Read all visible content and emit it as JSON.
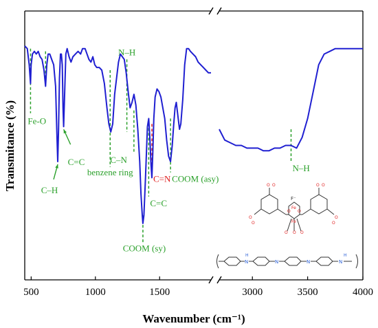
{
  "chart_data": {
    "type": "line",
    "title": "",
    "xlabel": "Wavenumber (cm⁻¹)",
    "ylabel": "Transmitance (%)",
    "x_axis": {
      "segments": [
        {
          "range": [
            450,
            1900
          ],
          "ticks": [
            500,
            1000,
            1500
          ],
          "tick_labels": [
            "500",
            "1000",
            "1500"
          ]
        },
        {
          "range": [
            2700,
            4000
          ],
          "ticks": [
            3000,
            3500,
            4000
          ],
          "tick_labels": [
            "3000",
            "3500",
            "4000"
          ]
        }
      ],
      "break_between": [
        1900,
        2700
      ]
    },
    "y_axis": {
      "ticks_shown": false,
      "ylim": [
        0,
        100
      ]
    },
    "series": [
      {
        "color": "#1f1fd1",
        "segments": [
          [
            [
              450,
              87
            ],
            [
              470,
              86
            ],
            [
              485,
              80
            ],
            [
              495,
              73
            ],
            [
              500,
              80
            ],
            [
              510,
              84
            ],
            [
              525,
              85
            ],
            [
              540,
              84
            ],
            [
              555,
              85
            ],
            [
              570,
              83
            ],
            [
              585,
              82
            ],
            [
              600,
              78
            ],
            [
              612,
              72
            ],
            [
              622,
              80
            ],
            [
              632,
              84
            ],
            [
              645,
              84
            ],
            [
              660,
              82
            ],
            [
              675,
              80
            ],
            [
              690,
              72
            ],
            [
              700,
              55
            ],
            [
              707,
              44
            ],
            [
              713,
              56
            ],
            [
              720,
              75
            ],
            [
              728,
              84
            ],
            [
              735,
              84
            ],
            [
              742,
              80
            ],
            [
              748,
              64
            ],
            [
              753,
              57
            ],
            [
              760,
              68
            ],
            [
              770,
              84
            ],
            [
              780,
              86
            ],
            [
              795,
              83
            ],
            [
              810,
              81
            ],
            [
              825,
              83
            ],
            [
              845,
              84
            ],
            [
              865,
              85
            ],
            [
              885,
              84
            ],
            [
              900,
              86
            ],
            [
              920,
              86
            ],
            [
              935,
              84
            ],
            [
              950,
              82
            ],
            [
              965,
              81
            ],
            [
              980,
              83
            ],
            [
              995,
              80
            ],
            [
              1010,
              79
            ],
            [
              1030,
              79
            ],
            [
              1050,
              78
            ],
            [
              1070,
              73
            ],
            [
              1090,
              64
            ],
            [
              1105,
              58
            ],
            [
              1120,
              55
            ],
            [
              1135,
              58
            ],
            [
              1150,
              69
            ],
            [
              1165,
              75
            ],
            [
              1180,
              81
            ],
            [
              1195,
              84
            ],
            [
              1210,
              83
            ],
            [
              1225,
              82
            ],
            [
              1240,
              77
            ],
            [
              1255,
              70
            ],
            [
              1270,
              64
            ],
            [
              1285,
              66
            ],
            [
              1300,
              69
            ],
            [
              1315,
              65
            ],
            [
              1330,
              56
            ],
            [
              1345,
              44
            ],
            [
              1355,
              32
            ],
            [
              1365,
              24
            ],
            [
              1370,
              21
            ],
            [
              1378,
              24
            ],
            [
              1390,
              38
            ],
            [
              1405,
              57
            ],
            [
              1415,
              60
            ],
            [
              1425,
              52
            ],
            [
              1433,
              43
            ],
            [
              1440,
              38
            ],
            [
              1447,
              47
            ],
            [
              1455,
              60
            ],
            [
              1465,
              68
            ],
            [
              1480,
              71
            ],
            [
              1495,
              70
            ],
            [
              1510,
              68
            ],
            [
              1525,
              64
            ],
            [
              1540,
              60
            ],
            [
              1555,
              52
            ],
            [
              1570,
              46
            ],
            [
              1585,
              44
            ],
            [
              1598,
              50
            ],
            [
              1610,
              58
            ],
            [
              1620,
              64
            ],
            [
              1630,
              66
            ],
            [
              1645,
              60
            ],
            [
              1655,
              56
            ],
            [
              1665,
              58
            ],
            [
              1680,
              67
            ],
            [
              1695,
              80
            ],
            [
              1710,
              86
            ],
            [
              1725,
              86
            ],
            [
              1740,
              85
            ],
            [
              1760,
              84
            ],
            [
              1780,
              83
            ],
            [
              1800,
              81
            ],
            [
              1820,
              80
            ],
            [
              1840,
              79
            ],
            [
              1860,
              78
            ],
            [
              1880,
              77
            ],
            [
              1900,
              77
            ]
          ],
          [
            [
              2700,
              56
            ],
            [
              2750,
              52
            ],
            [
              2800,
              51
            ],
            [
              2850,
              50
            ],
            [
              2900,
              50
            ],
            [
              2950,
              49
            ],
            [
              3000,
              49
            ],
            [
              3050,
              49
            ],
            [
              3100,
              48
            ],
            [
              3150,
              48
            ],
            [
              3200,
              49
            ],
            [
              3250,
              49
            ],
            [
              3300,
              50
            ],
            [
              3350,
              50
            ],
            [
              3400,
              49
            ],
            [
              3450,
              53
            ],
            [
              3500,
              60
            ],
            [
              3550,
              70
            ],
            [
              3600,
              80
            ],
            [
              3650,
              84
            ],
            [
              3700,
              85
            ],
            [
              3750,
              86
            ],
            [
              3800,
              86
            ],
            [
              3850,
              86
            ],
            [
              3900,
              86
            ],
            [
              3950,
              86
            ],
            [
              4000,
              86
            ]
          ]
        ]
      }
    ],
    "annotations": [
      {
        "text": "Fe-O",
        "x": 495,
        "y_top": 86,
        "y_bottom": 62,
        "color": "#2aa02a",
        "line": "dashed",
        "label_pos": "below"
      },
      {
        "text": "",
        "x": 612,
        "y_top": 85,
        "y_bottom": 72,
        "color": "#2aa02a",
        "line": "dashed"
      },
      {
        "text": "C–H",
        "x": 707,
        "color": "#2aa02a",
        "arrow": true,
        "label_pos": "below"
      },
      {
        "text": "C=C",
        "x": 753,
        "color": "#2aa02a",
        "arrow": true,
        "label_pos": "below-right"
      },
      {
        "text": "benzene ring",
        "x": 1115,
        "y_top": 78,
        "y_bottom": 42,
        "color": "#2aa02a",
        "line": "dashed",
        "label_pos": "below"
      },
      {
        "text": "N–H",
        "x": 1245,
        "y_top": 82,
        "y_bottom": 55,
        "color": "#2aa02a",
        "line": "dashed",
        "label_pos": "above"
      },
      {
        "text": "C–N",
        "x": 1300,
        "y_top": 63,
        "y_bottom": 47,
        "color": "#2aa02a",
        "line": "dashed",
        "label_pos": "below-left"
      },
      {
        "text": "COOM (sy)",
        "x": 1370,
        "y_top": 24,
        "y_bottom": 14,
        "color": "#2aa02a",
        "line": "dashed",
        "label_pos": "below"
      },
      {
        "text": "C=C",
        "x": 1415,
        "y_top": 60,
        "y_bottom": 31,
        "color": "#2aa02a",
        "line": "dashed",
        "label_pos": "below-right"
      },
      {
        "text": "C=N",
        "x": 1440,
        "y_top": 58,
        "y_bottom": 40,
        "color": "#e02020",
        "line": "dashed",
        "label_pos": "below-right"
      },
      {
        "text": "COOM (asy)",
        "x": 1585,
        "y_top": 60,
        "y_bottom": 40,
        "color": "#2aa02a",
        "line": "dashed",
        "label_pos": "below-right"
      },
      {
        "text": "N–H",
        "x": 3350,
        "y_top": 56,
        "y_bottom": 44,
        "color": "#2aa02a",
        "line": "dashed",
        "label_pos": "below-right"
      }
    ],
    "inset_structures": {
      "mof_labels": [
        "F⁻",
        "Fe",
        "O"
      ],
      "polymer_labels": [
        "H",
        "N",
        "N",
        "N",
        "H",
        "N"
      ]
    },
    "grid": false,
    "legend": "none"
  }
}
